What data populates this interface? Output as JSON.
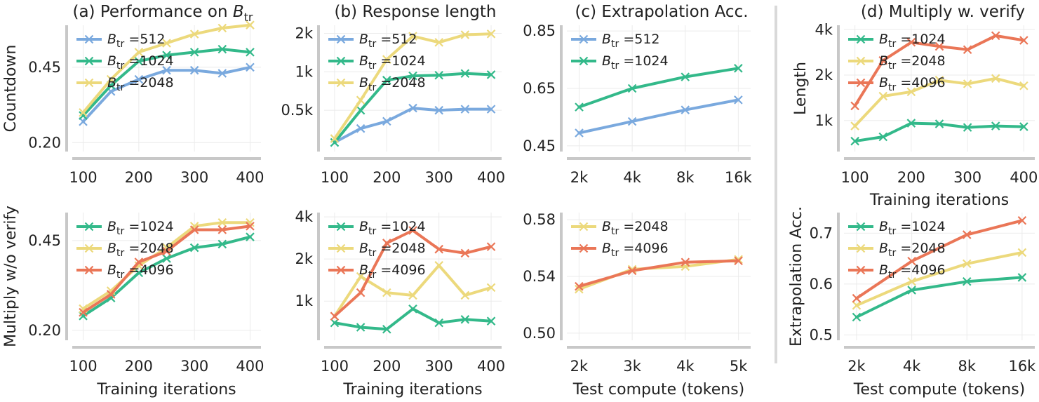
{
  "colors": {
    "512": "#7aa9de",
    "1024": "#33b98a",
    "2048": "#ecd97c",
    "4096": "#ea7657",
    "grid": "#ebebeb",
    "axis": "#c8c8c8",
    "separator": "#d9d9d9"
  },
  "legend_prefix": "B",
  "legend_sub": "tr",
  "legend_eq": " =",
  "chart_data": [
    {
      "id": "p00",
      "type": "line",
      "title": "(a) Performance on ",
      "title_math": "B",
      "title_sub": "tr",
      "xlabel": "",
      "ylabel": "Countdown",
      "xscale": "linear",
      "yscale": "linear",
      "xlim": [
        88,
        412
      ],
      "ylim": [
        0.18,
        0.58
      ],
      "xticks": [
        100,
        200,
        300,
        400
      ],
      "xticklabels": [
        "100",
        "200",
        "300",
        "400"
      ],
      "yticks": [
        0.2,
        0.45
      ],
      "yticklabels": [
        "0.20",
        "0.45"
      ],
      "grid": true,
      "series": [
        {
          "name": "512",
          "x": [
            100,
            150,
            200,
            250,
            300,
            350,
            400
          ],
          "y": [
            0.27,
            0.37,
            0.41,
            0.44,
            0.44,
            0.43,
            0.45
          ]
        },
        {
          "name": "1024",
          "x": [
            100,
            150,
            200,
            250,
            300,
            350,
            400
          ],
          "y": [
            0.29,
            0.39,
            0.47,
            0.49,
            0.5,
            0.51,
            0.5
          ]
        },
        {
          "name": "2048",
          "x": [
            100,
            150,
            200,
            250,
            300,
            350,
            400
          ],
          "y": [
            0.3,
            0.41,
            0.5,
            0.53,
            0.56,
            0.58,
            0.59
          ]
        }
      ]
    },
    {
      "id": "p01",
      "type": "line",
      "title": "(b) Response length",
      "xlabel": "",
      "ylabel": "",
      "xscale": "linear",
      "yscale": "log",
      "xlim": [
        88,
        412
      ],
      "ylim": [
        250,
        2200
      ],
      "xticks": [
        100,
        200,
        300,
        400
      ],
      "xticklabels": [
        "100",
        "200",
        "300",
        "400"
      ],
      "yticks": [
        500,
        1000,
        2000
      ],
      "yticklabels": [
        "0.5k",
        "1k",
        "2k"
      ],
      "grid": true,
      "series": [
        {
          "name": "512",
          "x": [
            100,
            150,
            200,
            250,
            300,
            350,
            400
          ],
          "y": [
            280,
            360,
            410,
            520,
            500,
            510,
            510
          ]
        },
        {
          "name": "1024",
          "x": [
            100,
            150,
            200,
            250,
            300,
            350,
            400
          ],
          "y": [
            280,
            500,
            860,
            930,
            940,
            970,
            950
          ]
        },
        {
          "name": "2048",
          "x": [
            100,
            150,
            200,
            250,
            300,
            350,
            400
          ],
          "y": [
            300,
            600,
            1250,
            1900,
            1700,
            1950,
            1980
          ]
        }
      ]
    },
    {
      "id": "p02",
      "type": "line",
      "title": "(c) Extrapolation Acc.",
      "xlabel": "",
      "ylabel": "",
      "xscale": "log2",
      "yscale": "linear",
      "xlim": [
        1800,
        17800
      ],
      "ylim": [
        0.44,
        0.86
      ],
      "xticks": [
        2000,
        4000,
        8000,
        16000
      ],
      "xticklabels": [
        "2k",
        "4k",
        "8k",
        "16k"
      ],
      "yticks": [
        0.45,
        0.65,
        0.85
      ],
      "yticklabels": [
        "0.45",
        "0.65",
        "0.85"
      ],
      "grid": true,
      "series": [
        {
          "name": "512",
          "x": [
            2000,
            4000,
            8000,
            16000
          ],
          "y": [
            0.495,
            0.535,
            0.575,
            0.61
          ]
        },
        {
          "name": "1024",
          "x": [
            2000,
            4000,
            8000,
            16000
          ],
          "y": [
            0.585,
            0.65,
            0.69,
            0.72
          ]
        }
      ]
    },
    {
      "id": "p03",
      "type": "line",
      "title": "(d) Multiply w. verify",
      "xlabel": "Training iterations",
      "ylabel": "Length",
      "xscale": "linear",
      "yscale": "log",
      "xlim": [
        88,
        412
      ],
      "ylim": [
        650,
        4100
      ],
      "xticks": [
        100,
        200,
        300,
        400
      ],
      "xticklabels": [
        "100",
        "200",
        "300",
        "400"
      ],
      "yticks": [
        1000,
        2000,
        4000
      ],
      "yticklabels": [
        "1k",
        "2k",
        "4k"
      ],
      "grid": true,
      "series": [
        {
          "name": "1024",
          "x": [
            100,
            150,
            200,
            250,
            300,
            350,
            400
          ],
          "y": [
            730,
            780,
            960,
            950,
            900,
            920,
            910
          ]
        },
        {
          "name": "2048",
          "x": [
            100,
            150,
            200,
            250,
            300,
            350,
            400
          ],
          "y": [
            920,
            1450,
            1550,
            1850,
            1750,
            1900,
            1700
          ]
        },
        {
          "name": "4096",
          "x": [
            100,
            150,
            200,
            250,
            300,
            350,
            400
          ],
          "y": [
            1250,
            2500,
            3300,
            3100,
            2950,
            3650,
            3400
          ]
        }
      ]
    },
    {
      "id": "p10",
      "type": "line",
      "title": "",
      "xlabel": "Training iterations",
      "ylabel": "Multiply w/o verify",
      "xscale": "linear",
      "yscale": "linear",
      "xlim": [
        88,
        412
      ],
      "ylim": [
        0.18,
        0.52
      ],
      "xticks": [
        100,
        200,
        300,
        400
      ],
      "xticklabels": [
        "100",
        "200",
        "300",
        "400"
      ],
      "yticks": [
        0.2,
        0.45
      ],
      "yticklabels": [
        "0.20",
        "0.45"
      ],
      "grid": true,
      "series": [
        {
          "name": "1024",
          "x": [
            100,
            150,
            200,
            250,
            300,
            350,
            400
          ],
          "y": [
            0.24,
            0.29,
            0.36,
            0.4,
            0.43,
            0.44,
            0.46
          ]
        },
        {
          "name": "2048",
          "x": [
            100,
            150,
            200,
            250,
            300,
            350,
            400
          ],
          "y": [
            0.26,
            0.31,
            0.38,
            0.43,
            0.49,
            0.5,
            0.5
          ]
        },
        {
          "name": "4096",
          "x": [
            100,
            150,
            200,
            250,
            300,
            350,
            400
          ],
          "y": [
            0.25,
            0.3,
            0.39,
            0.42,
            0.48,
            0.48,
            0.49
          ]
        }
      ]
    },
    {
      "id": "p11",
      "type": "line",
      "title": "",
      "xlabel": "Training iterations",
      "ylabel": "",
      "xscale": "linear",
      "yscale": "log",
      "xlim": [
        88,
        412
      ],
      "ylim": [
        550,
        4100
      ],
      "xticks": [
        100,
        200,
        300,
        400
      ],
      "xticklabels": [
        "100",
        "200",
        "300",
        "400"
      ],
      "yticks": [
        1000,
        2000,
        4000
      ],
      "yticklabels": [
        "1k",
        "2k",
        "4k"
      ],
      "grid": true,
      "series": [
        {
          "name": "1024",
          "x": [
            100,
            150,
            200,
            250,
            300,
            350,
            400
          ],
          "y": [
            700,
            650,
            630,
            880,
            700,
            740,
            720
          ]
        },
        {
          "name": "2048",
          "x": [
            100,
            150,
            200,
            250,
            300,
            350,
            400
          ],
          "y": [
            780,
            1500,
            1150,
            1100,
            1800,
            1100,
            1250
          ]
        },
        {
          "name": "4096",
          "x": [
            100,
            150,
            200,
            250,
            300,
            350,
            400
          ],
          "y": [
            780,
            1150,
            2600,
            3200,
            2350,
            2200,
            2450
          ]
        }
      ]
    },
    {
      "id": "p12",
      "type": "line",
      "title": "",
      "xlabel": "Test compute (tokens)",
      "ylabel": "",
      "xscale": "linear",
      "yscale": "linear",
      "xlim": [
        1850,
        5150
      ],
      "ylim": [
        0.497,
        0.583
      ],
      "xticks": [
        2000,
        3000,
        4000,
        5000
      ],
      "xticklabels": [
        "2k",
        "3k",
        "4k",
        "5k"
      ],
      "yticks": [
        0.5,
        0.54,
        0.58
      ],
      "yticklabels": [
        "0.50",
        "0.54",
        "0.58"
      ],
      "grid": true,
      "series": [
        {
          "name": "2048",
          "x": [
            2000,
            3000,
            4000,
            5000
          ],
          "y": [
            0.531,
            0.545,
            0.547,
            0.552
          ]
        },
        {
          "name": "4096",
          "x": [
            2000,
            3000,
            4000,
            5000
          ],
          "y": [
            0.533,
            0.544,
            0.55,
            0.551
          ]
        }
      ]
    },
    {
      "id": "p13",
      "type": "line",
      "title": "",
      "xlabel": "Test compute (tokens)",
      "ylabel": "Extrapolation Acc.",
      "xscale": "log2",
      "yscale": "linear",
      "xlim": [
        1800,
        17800
      ],
      "ylim": [
        0.495,
        0.735
      ],
      "xticks": [
        2000,
        4000,
        8000,
        16000
      ],
      "xticklabels": [
        "2k",
        "4k",
        "8k",
        "16k"
      ],
      "yticks": [
        0.5,
        0.6,
        0.7
      ],
      "yticklabels": [
        "0.5",
        "0.6",
        "0.7"
      ],
      "grid": true,
      "series": [
        {
          "name": "1024",
          "x": [
            2000,
            4000,
            8000,
            16000
          ],
          "y": [
            0.535,
            0.588,
            0.605,
            0.613
          ]
        },
        {
          "name": "2048",
          "x": [
            2000,
            4000,
            8000,
            16000
          ],
          "y": [
            0.558,
            0.605,
            0.64,
            0.662
          ]
        },
        {
          "name": "4096",
          "x": [
            2000,
            4000,
            8000,
            16000
          ],
          "y": [
            0.572,
            0.645,
            0.697,
            0.725
          ]
        }
      ]
    }
  ]
}
